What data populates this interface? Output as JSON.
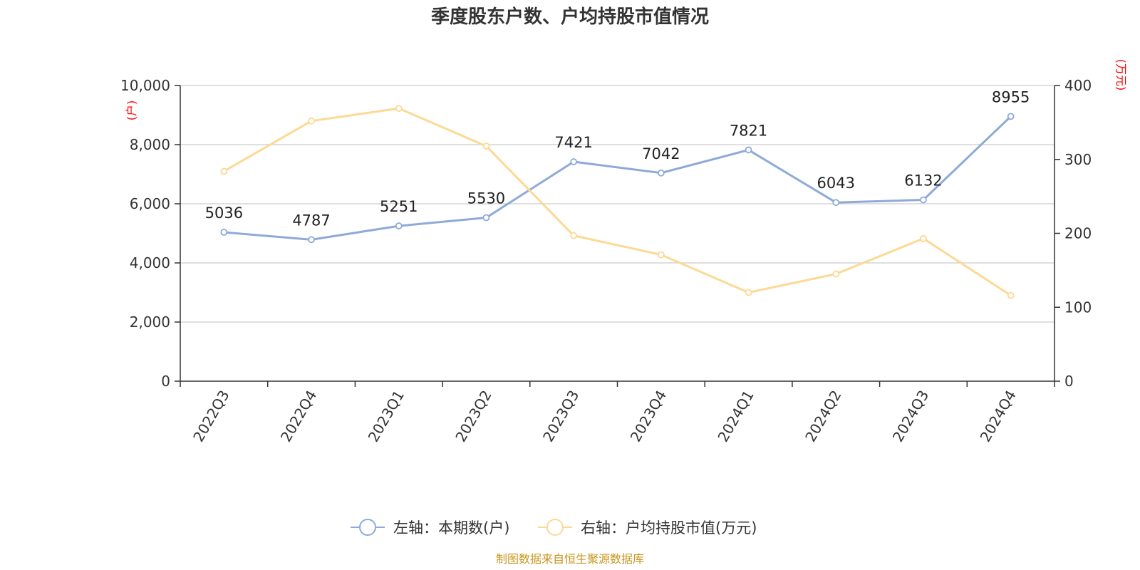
{
  "chart_data": {
    "type": "line",
    "title": "季度股东户数、户均持股市值情况",
    "categories": [
      "2022Q3",
      "2022Q4",
      "2023Q1",
      "2023Q2",
      "2023Q3",
      "2023Q4",
      "2024Q1",
      "2024Q2",
      "2024Q3",
      "2024Q4"
    ],
    "left_axis": {
      "unit": "(户)",
      "ylim": [
        0,
        10000
      ],
      "ticks": [
        "0",
        "2,000",
        "4,000",
        "6,000",
        "8,000",
        "10,000"
      ],
      "tick_values": [
        0,
        2000,
        4000,
        6000,
        8000,
        10000
      ]
    },
    "right_axis": {
      "unit": "(万元)",
      "ylim": [
        0,
        400
      ],
      "ticks": [
        "0",
        "100",
        "200",
        "300",
        "400"
      ],
      "tick_values": [
        0,
        100,
        200,
        300,
        400
      ]
    },
    "series": [
      {
        "name": "左轴：本期数(户)",
        "axis": "left",
        "color": "#8eaad8",
        "values": [
          5036,
          4787,
          5251,
          5530,
          7421,
          7042,
          7821,
          6043,
          6132,
          8955
        ],
        "labels": [
          "5036",
          "4787",
          "5251",
          "5530",
          "7421",
          "7042",
          "7821",
          "6043",
          "6132",
          "8955"
        ]
      },
      {
        "name": "右轴：户均持股市值(万元)",
        "axis": "right",
        "color": "#fcd994",
        "values": [
          284,
          352,
          369,
          318,
          197,
          171,
          120,
          145,
          193,
          116
        ]
      }
    ],
    "grid": true,
    "legend": "bottom-center"
  },
  "source": "制图数据来自恒生聚源数据库"
}
